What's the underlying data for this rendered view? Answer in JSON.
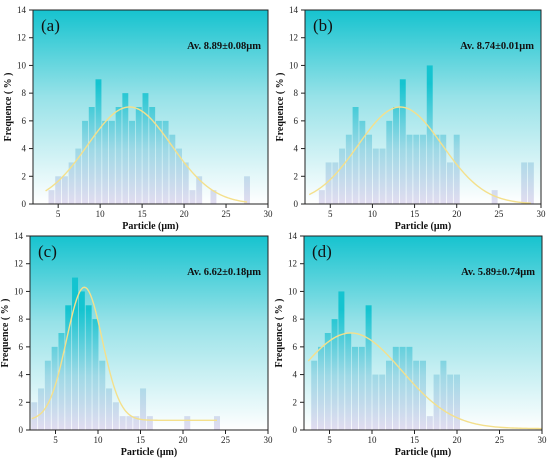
{
  "chart_data": [
    {
      "type": "bar",
      "panel_label": "(a)",
      "annotation": "Av. 8.89±0.08μm",
      "xlabel": "Particle (μm)",
      "ylabel": "Frequence ( % )",
      "xlim": [
        2,
        30
      ],
      "ylim": [
        0,
        14
      ],
      "xticks": [
        5,
        10,
        15,
        20,
        25,
        30
      ],
      "yticks": [
        0,
        2,
        4,
        6,
        8,
        10,
        12,
        14
      ],
      "bars": [
        [
          4.2,
          1
        ],
        [
          5.0,
          2
        ],
        [
          5.8,
          2
        ],
        [
          6.6,
          3
        ],
        [
          7.4,
          4
        ],
        [
          8.2,
          6
        ],
        [
          9.0,
          7
        ],
        [
          9.8,
          9
        ],
        [
          10.6,
          6
        ],
        [
          11.4,
          6
        ],
        [
          12.2,
          7
        ],
        [
          13.0,
          8
        ],
        [
          13.8,
          6
        ],
        [
          14.6,
          7
        ],
        [
          15.4,
          8
        ],
        [
          16.2,
          7
        ],
        [
          17.0,
          6
        ],
        [
          17.8,
          6
        ],
        [
          18.6,
          5
        ],
        [
          19.4,
          4
        ],
        [
          20.2,
          3
        ],
        [
          21.0,
          1
        ],
        [
          21.8,
          2
        ],
        [
          23.5,
          1
        ],
        [
          27.5,
          2
        ]
      ],
      "fit": {
        "type": "gaussian",
        "peak": 7.0,
        "center": 13.5,
        "sigma": 5.0,
        "x_range": [
          3.5,
          27.5
        ]
      }
    },
    {
      "type": "bar",
      "panel_label": "(b)",
      "annotation": "Av. 8.74±0.01μm",
      "xlabel": "Particle (μm)",
      "ylabel": "Frequence ( % )",
      "xlim": [
        2,
        30
      ],
      "ylim": [
        0,
        14
      ],
      "xticks": [
        5,
        10,
        15,
        20,
        25,
        30
      ],
      "yticks": [
        0,
        2,
        4,
        6,
        8,
        10,
        12,
        14
      ],
      "bars": [
        [
          4.0,
          1
        ],
        [
          4.8,
          3
        ],
        [
          5.6,
          3
        ],
        [
          6.4,
          4
        ],
        [
          7.2,
          5
        ],
        [
          8.0,
          7
        ],
        [
          8.8,
          6
        ],
        [
          9.6,
          5
        ],
        [
          10.4,
          4
        ],
        [
          11.2,
          4
        ],
        [
          12.0,
          6
        ],
        [
          12.8,
          7
        ],
        [
          13.6,
          9
        ],
        [
          14.4,
          5
        ],
        [
          15.2,
          5
        ],
        [
          16.0,
          5
        ],
        [
          16.8,
          10
        ],
        [
          17.6,
          5
        ],
        [
          18.4,
          5
        ],
        [
          19.2,
          3
        ],
        [
          20.0,
          5
        ],
        [
          24.5,
          1
        ],
        [
          28.0,
          3
        ],
        [
          28.8,
          3
        ]
      ],
      "fit": {
        "type": "gaussian",
        "peak": 7.0,
        "center": 13.3,
        "sigma": 5.0,
        "x_range": [
          2.5,
          28.8
        ]
      }
    },
    {
      "type": "bar",
      "panel_label": "(c)",
      "annotation": "Av. 6.62±0.18μm",
      "xlabel": "Particle (μm)",
      "ylabel": "Frequence ( % )",
      "xlim": [
        2,
        30
      ],
      "ylim": [
        0,
        14
      ],
      "xticks": [
        5,
        10,
        15,
        20,
        25,
        30
      ],
      "yticks": [
        0,
        2,
        4,
        6,
        8,
        10,
        12,
        14
      ],
      "bars": [
        [
          2.5,
          2
        ],
        [
          3.3,
          3
        ],
        [
          4.1,
          5
        ],
        [
          4.9,
          6
        ],
        [
          5.7,
          7
        ],
        [
          6.5,
          9
        ],
        [
          7.3,
          11
        ],
        [
          8.1,
          10
        ],
        [
          8.9,
          9
        ],
        [
          9.7,
          8
        ],
        [
          10.5,
          5
        ],
        [
          11.3,
          3
        ],
        [
          12.1,
          2
        ],
        [
          12.9,
          1
        ],
        [
          13.7,
          1
        ],
        [
          14.5,
          1
        ],
        [
          15.3,
          3
        ],
        [
          16.1,
          1
        ],
        [
          20.5,
          1
        ],
        [
          24.0,
          1
        ]
      ],
      "fit": {
        "type": "gaussian",
        "peak": 10.3,
        "center": 8.4,
        "sigma": 2.1,
        "baseline": 0.7,
        "x_range": [
          2.2,
          24.0
        ]
      }
    },
    {
      "type": "bar",
      "panel_label": "(d)",
      "annotation": "Av. 5.89±0.74μm",
      "xlabel": "Particle (μm)",
      "ylabel": "Frequence ( % )",
      "xlim": [
        2,
        30
      ],
      "ylim": [
        0,
        14
      ],
      "xticks": [
        5,
        10,
        15,
        20,
        25,
        30
      ],
      "yticks": [
        0,
        2,
        4,
        6,
        8,
        10,
        12,
        14
      ],
      "bars": [
        [
          3.2,
          5
        ],
        [
          4.0,
          6
        ],
        [
          4.8,
          7
        ],
        [
          5.6,
          8
        ],
        [
          6.4,
          10
        ],
        [
          7.2,
          7
        ],
        [
          8.0,
          6
        ],
        [
          8.8,
          6
        ],
        [
          9.6,
          9
        ],
        [
          10.4,
          4
        ],
        [
          11.2,
          4
        ],
        [
          12.0,
          5
        ],
        [
          12.8,
          6
        ],
        [
          13.6,
          6
        ],
        [
          14.4,
          6
        ],
        [
          15.2,
          5
        ],
        [
          16.0,
          5
        ],
        [
          16.8,
          1
        ],
        [
          17.6,
          4
        ],
        [
          18.4,
          5
        ],
        [
          19.2,
          4
        ],
        [
          20.0,
          4
        ]
      ],
      "fit": {
        "type": "gaussian",
        "peak": 7.0,
        "center": 7.5,
        "sigma": 6.0,
        "baseline": 0.1,
        "x_range": [
          2.5,
          30
        ]
      }
    }
  ],
  "colors": {
    "bar_top": "#14c4d0",
    "bar_bottom": "#e2dcf0",
    "plot_top": "#16c3cf",
    "plot_mid": "#98e2e8",
    "plot_bottom": "#ffffff",
    "fit_line": "#f4e08c",
    "axis": "#222222"
  }
}
